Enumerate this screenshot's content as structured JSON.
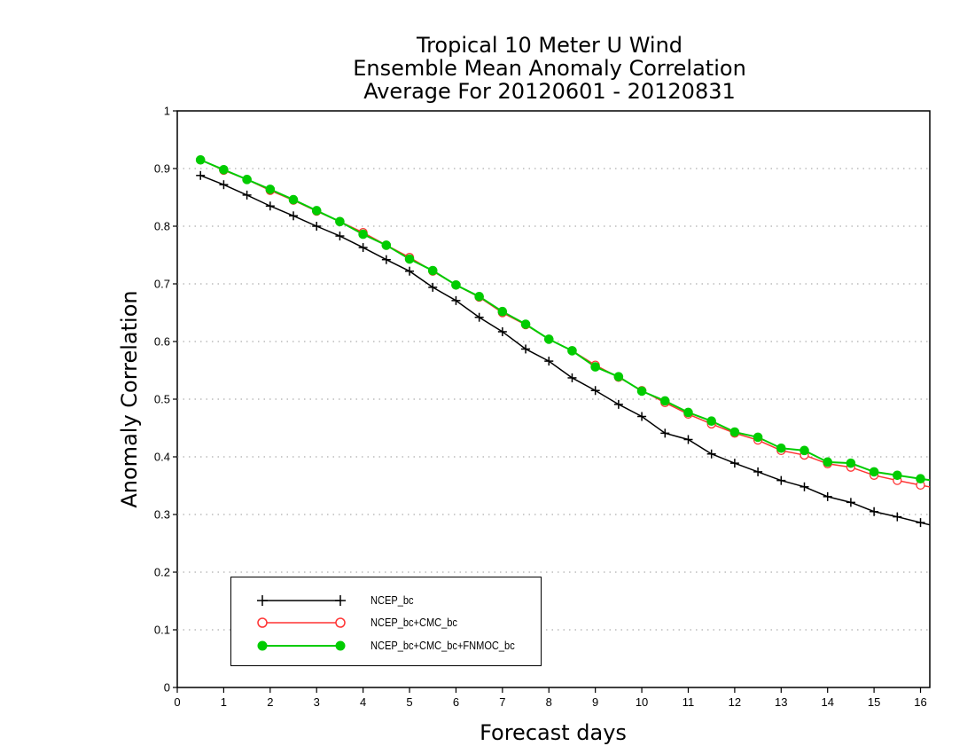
{
  "chart_data": {
    "type": "line",
    "title": [
      "Tropical 10 Meter U Wind",
      "Ensemble Mean Anomaly Correlation",
      "Average For 20120601 - 20120831"
    ],
    "xlabel": "Forecast days",
    "ylabel": "Anomaly Correlation",
    "xlim": [
      0,
      16.2
    ],
    "ylim": [
      0,
      1
    ],
    "xticks": [
      "0",
      "1",
      "2",
      "3",
      "4",
      "5",
      "6",
      "7",
      "8",
      "9",
      "10",
      "11",
      "12",
      "13",
      "14",
      "15",
      "16"
    ],
    "yticks": [
      "0",
      "0.1",
      "0.2",
      "0.3",
      "0.4",
      "0.5",
      "0.6",
      "0.7",
      "0.8",
      "0.9",
      "1"
    ],
    "grid": true,
    "legend_position": "bottom-left",
    "x": [
      0.5,
      1,
      1.5,
      2,
      2.5,
      3,
      3.5,
      4,
      4.5,
      5,
      5.5,
      6,
      6.5,
      7,
      7.5,
      8,
      8.5,
      9,
      9.5,
      10,
      10.5,
      11,
      11.5,
      12,
      12.5,
      13,
      13.5,
      14,
      14.5,
      15,
      15.5,
      16
    ],
    "series": [
      {
        "name": "NCEP_bc",
        "color": "#000000",
        "marker": "plus",
        "values": [
          0.888,
          0.872,
          0.854,
          0.835,
          0.818,
          0.8,
          0.783,
          0.763,
          0.742,
          0.722,
          0.694,
          0.671,
          0.642,
          0.617,
          0.587,
          0.566,
          0.537,
          0.515,
          0.491,
          0.47,
          0.441,
          0.43,
          0.405,
          0.389,
          0.374,
          0.359,
          0.348,
          0.331,
          0.321,
          0.305,
          0.296,
          0.286
        ]
      },
      {
        "name": "NCEP_bc+CMC_bc",
        "color": "#ff3333",
        "marker": "open-circle",
        "values": [
          0.915,
          0.897,
          0.881,
          0.862,
          0.845,
          0.826,
          0.808,
          0.789,
          0.767,
          0.746,
          0.722,
          0.698,
          0.677,
          0.65,
          0.629,
          0.604,
          0.584,
          0.559,
          0.538,
          0.515,
          0.494,
          0.474,
          0.457,
          0.441,
          0.429,
          0.411,
          0.403,
          0.388,
          0.382,
          0.368,
          0.359,
          0.351
        ]
      },
      {
        "name": "NCEP_bc+CMC_bc+FNMOC_bc",
        "color": "#00cc00",
        "marker": "filled-circle",
        "values": [
          0.915,
          0.898,
          0.881,
          0.864,
          0.846,
          0.827,
          0.808,
          0.786,
          0.767,
          0.743,
          0.723,
          0.698,
          0.678,
          0.652,
          0.63,
          0.604,
          0.584,
          0.556,
          0.539,
          0.514,
          0.497,
          0.477,
          0.462,
          0.443,
          0.434,
          0.415,
          0.411,
          0.391,
          0.389,
          0.374,
          0.368,
          0.362
        ]
      }
    ]
  }
}
